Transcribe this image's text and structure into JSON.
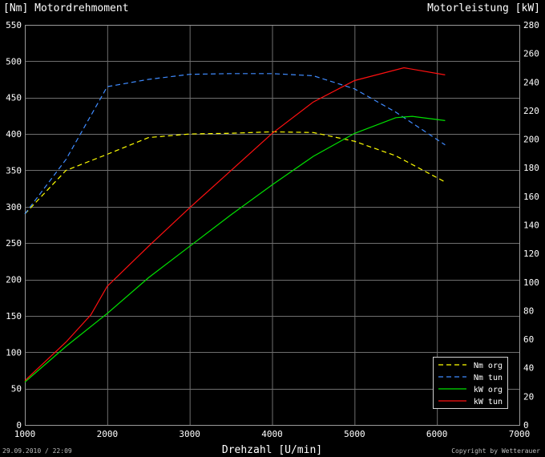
{
  "header": {
    "left_title": "[Nm] Motordrehmoment",
    "right_title": "Motorleistung [kW]"
  },
  "footer": {
    "date": "29.09.2010 / 22:09",
    "copyright": "Copyright by Wetterauer"
  },
  "chart_data": {
    "type": "line",
    "title": "",
    "xlabel": "Drehzahl [U/min]",
    "ylabel_left": "[Nm] Motordrehmoment",
    "ylabel_right": "Motorleistung [kW]",
    "xlim": [
      1000,
      7000
    ],
    "ylim_left": [
      0,
      550
    ],
    "ylim_right": [
      0,
      280
    ],
    "x_ticks": [
      1000,
      2000,
      3000,
      4000,
      5000,
      6000,
      7000
    ],
    "y_ticks_left": [
      0,
      50,
      100,
      150,
      200,
      250,
      300,
      350,
      400,
      450,
      500,
      550
    ],
    "y_ticks_right": [
      0,
      20,
      40,
      60,
      80,
      100,
      120,
      140,
      160,
      180,
      200,
      220,
      240,
      260,
      280
    ],
    "grid": true,
    "legend_position": "bottom-right",
    "background": "#000000",
    "grid_color": "#6f6f6f",
    "series": [
      {
        "name": "Nm org",
        "axis": "left",
        "color": "#ffff00",
        "dash": true,
        "x": [
          1000,
          1500,
          2000,
          2500,
          3000,
          3500,
          4000,
          4500,
          5000,
          5500,
          6100
        ],
        "y": [
          290,
          350,
          372,
          395,
          400,
          401,
          403,
          402,
          390,
          370,
          334
        ]
      },
      {
        "name": "Nm tun",
        "axis": "left",
        "color": "#3f8bff",
        "dash": true,
        "x": [
          1000,
          1500,
          2000,
          2500,
          3000,
          3500,
          4000,
          4500,
          5000,
          5500,
          6100
        ],
        "y": [
          290,
          365,
          465,
          475,
          482,
          483,
          483,
          480,
          462,
          430,
          385
        ]
      },
      {
        "name": "kW org",
        "axis": "right",
        "color": "#00e000",
        "dash": false,
        "x": [
          1000,
          1500,
          2000,
          2500,
          3000,
          3500,
          4000,
          4500,
          5000,
          5500,
          5700,
          6100
        ],
        "y": [
          30,
          55,
          78,
          103,
          125,
          147,
          168,
          188,
          204,
          215,
          216,
          213
        ]
      },
      {
        "name": "kW tun",
        "axis": "right",
        "color": "#ff1010",
        "dash": false,
        "x": [
          1000,
          1500,
          1800,
          2000,
          2500,
          3000,
          3500,
          4000,
          4500,
          5000,
          5600,
          6100
        ],
        "y": [
          31,
          58,
          77,
          97,
          125,
          152,
          178,
          204,
          226,
          241,
          250,
          245
        ]
      }
    ]
  }
}
